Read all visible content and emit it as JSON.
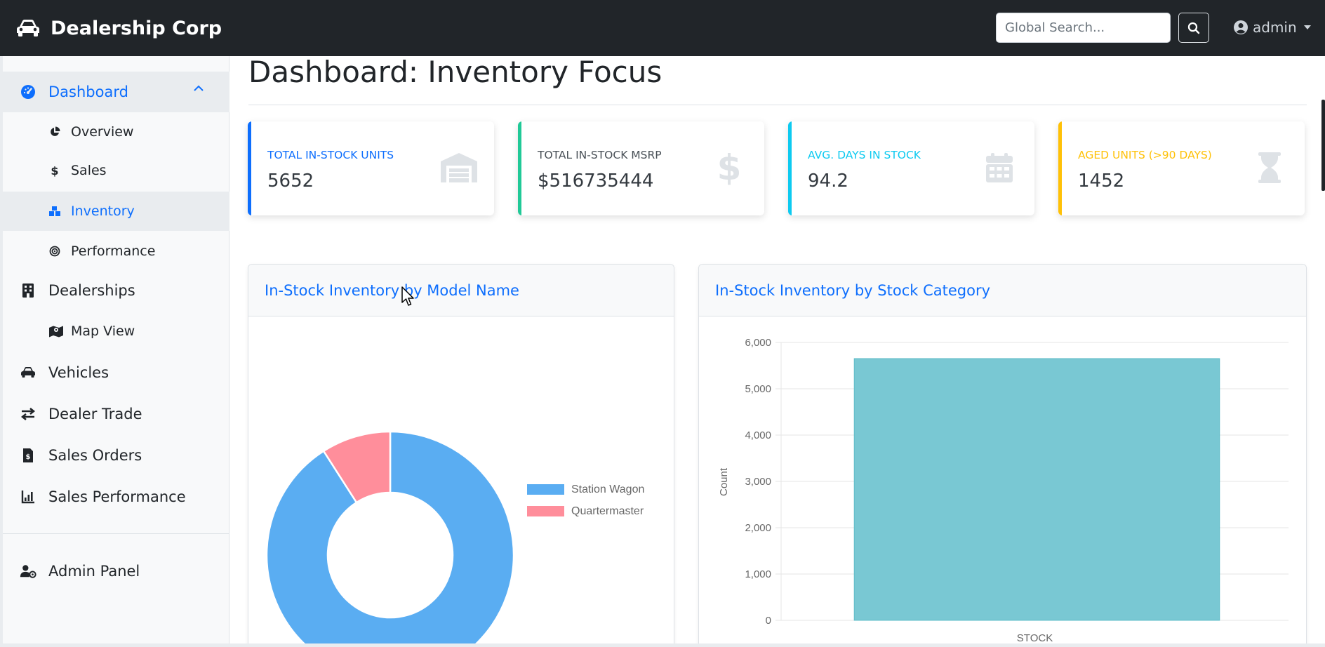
{
  "app": {
    "brand": "Dealership Corp",
    "search_placeholder": "Global Search...",
    "user": "admin"
  },
  "sidebar": {
    "items": [
      {
        "label": "Dashboard",
        "icon": "gauge-icon",
        "active": true,
        "expanded": true
      },
      {
        "label": "Overview",
        "icon": "pie-icon"
      },
      {
        "label": "Sales",
        "icon": "dollar-icon"
      },
      {
        "label": "Inventory",
        "icon": "boxes-icon",
        "active": true
      },
      {
        "label": "Performance",
        "icon": "target-icon"
      },
      {
        "label": "Dealerships",
        "icon": "building-icon"
      },
      {
        "label": "Map View",
        "icon": "map-icon"
      },
      {
        "label": "Vehicles",
        "icon": "car-icon"
      },
      {
        "label": "Dealer Trade",
        "icon": "arrows-icon"
      },
      {
        "label": "Sales Orders",
        "icon": "invoice-icon"
      },
      {
        "label": "Sales Performance",
        "icon": "chart-icon"
      },
      {
        "label": "Admin Panel",
        "icon": "user-gear-icon"
      }
    ]
  },
  "page": {
    "title": "Dashboard: Inventory Focus"
  },
  "kpis": [
    {
      "label": "Total In-Stock Units",
      "value": "5652",
      "color": "#0d6efd",
      "icon": "warehouse-icon"
    },
    {
      "label": "Total In-Stock MSRP",
      "value": "$516735444",
      "color": "#20c997",
      "label_color": "#495057",
      "icon": "dollar-icon"
    },
    {
      "label": "Avg. Days In Stock",
      "value": "94.2",
      "color": "#0dcaf0",
      "icon": "calendar-icon"
    },
    {
      "label": "Aged Units (>90 Days)",
      "value": "1452",
      "color": "#ffc107",
      "icon": "hourglass-icon"
    }
  ],
  "cards": {
    "model": {
      "title": "In-Stock Inventory by Model Name"
    },
    "category": {
      "title": "In-Stock Inventory by Stock Category"
    }
  },
  "chart_data": [
    {
      "type": "pie",
      "variant": "doughnut",
      "labels": [
        "Station Wagon",
        "Quartermaster"
      ],
      "values": [
        5140,
        512
      ],
      "colors": [
        "#5aadf2",
        "#ff8e9b"
      ],
      "legend": "right"
    },
    {
      "type": "bar",
      "categories": [
        "STOCK"
      ],
      "values": [
        5652
      ],
      "ylabel": "Count",
      "ylim": [
        0,
        6000
      ],
      "yticks": [
        "0",
        "1,000",
        "2,000",
        "3,000",
        "4,000",
        "5,000",
        "6,000"
      ],
      "color": "#79c8d3",
      "grid": true
    }
  ]
}
